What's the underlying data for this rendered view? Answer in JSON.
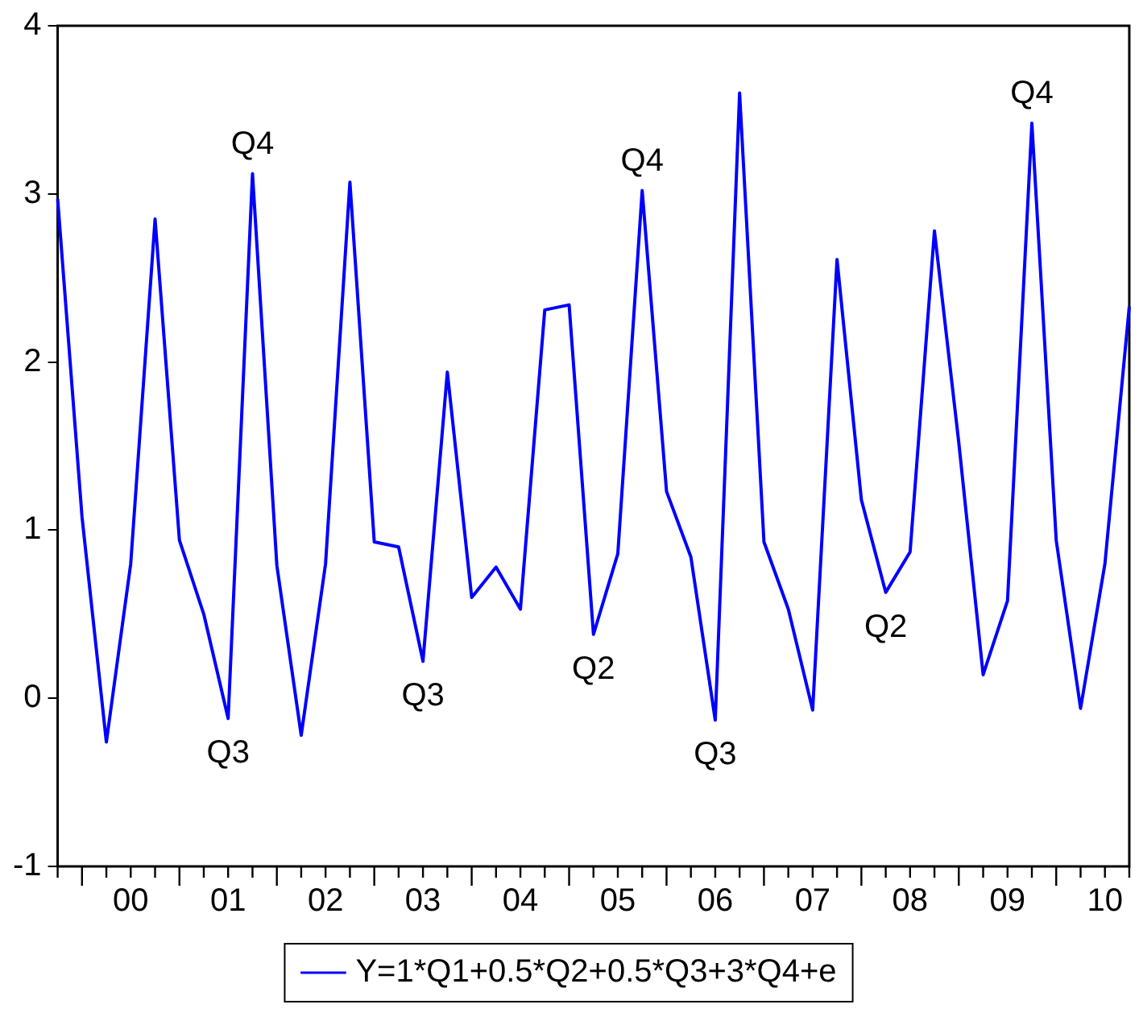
{
  "chart_data": {
    "type": "line",
    "x": [
      "1999-10",
      "2000-01",
      "2000-04",
      "2000-07",
      "2000-10",
      "2001-01",
      "2001-04",
      "2001-07",
      "2001-10",
      "2002-01",
      "2002-04",
      "2002-07",
      "2002-10",
      "2003-01",
      "2003-04",
      "2003-07",
      "2003-10",
      "2004-01",
      "2004-04",
      "2004-07",
      "2004-10",
      "2005-01",
      "2005-04",
      "2005-07",
      "2005-10",
      "2006-01",
      "2006-04",
      "2006-07",
      "2006-10",
      "2007-01",
      "2007-04",
      "2007-07",
      "2007-10",
      "2008-01",
      "2008-04",
      "2008-07",
      "2008-10",
      "2009-01",
      "2009-04",
      "2009-07",
      "2009-10",
      "2010-01",
      "2010-04",
      "2010-07",
      "2010-10"
    ],
    "series": [
      {
        "name": "Y=1*Q1+0.5*Q2+0.5*Q3+3*Q4+e",
        "color": "#0000ff",
        "values": [
          2.97,
          1.08,
          -0.26,
          0.8,
          2.85,
          0.94,
          0.5,
          -0.12,
          3.12,
          0.79,
          -0.22,
          0.8,
          3.07,
          0.93,
          0.9,
          0.22,
          1.94,
          0.6,
          0.78,
          0.53,
          2.31,
          2.34,
          0.38,
          0.86,
          3.02,
          1.23,
          0.84,
          -0.13,
          3.6,
          0.93,
          0.53,
          -0.07,
          2.61,
          1.18,
          0.63,
          0.87,
          2.78,
          1.52,
          0.14,
          0.58,
          3.42,
          0.94,
          -0.06,
          0.8,
          2.33
        ]
      }
    ],
    "xlim": [
      "1999-10",
      "2010-10"
    ],
    "xticks": [
      {
        "value": "2000-07",
        "label": "00"
      },
      {
        "value": "2001-07",
        "label": "01"
      },
      {
        "value": "2002-07",
        "label": "02"
      },
      {
        "value": "2003-07",
        "label": "03"
      },
      {
        "value": "2004-07",
        "label": "04"
      },
      {
        "value": "2005-07",
        "label": "05"
      },
      {
        "value": "2006-07",
        "label": "06"
      },
      {
        "value": "2007-07",
        "label": "07"
      },
      {
        "value": "2008-07",
        "label": "08"
      },
      {
        "value": "2009-07",
        "label": "09"
      },
      {
        "value": "2010-07",
        "label": "10"
      }
    ],
    "ylim": [
      -1,
      4
    ],
    "yticks": [
      -1,
      0,
      1,
      2,
      3,
      4
    ],
    "annotations": [
      {
        "text": "Q4",
        "x": "2001-10",
        "y": 3.12
      },
      {
        "text": "Q3",
        "x": "2001-07",
        "y": -0.12
      },
      {
        "text": "Q3",
        "x": "2003-07",
        "y": 0.22
      },
      {
        "text": "Q2",
        "x": "2005-04",
        "y": 0.38
      },
      {
        "text": "Q4",
        "x": "2005-10",
        "y": 3.02
      },
      {
        "text": "Q3",
        "x": "2006-07",
        "y": -0.13
      },
      {
        "text": "Q2",
        "x": "2008-04",
        "y": 0.63
      },
      {
        "text": "Q4",
        "x": "2009-10",
        "y": 3.42
      }
    ],
    "grid": false,
    "legend": "bottom",
    "marker": "none",
    "line_style": "solid"
  }
}
